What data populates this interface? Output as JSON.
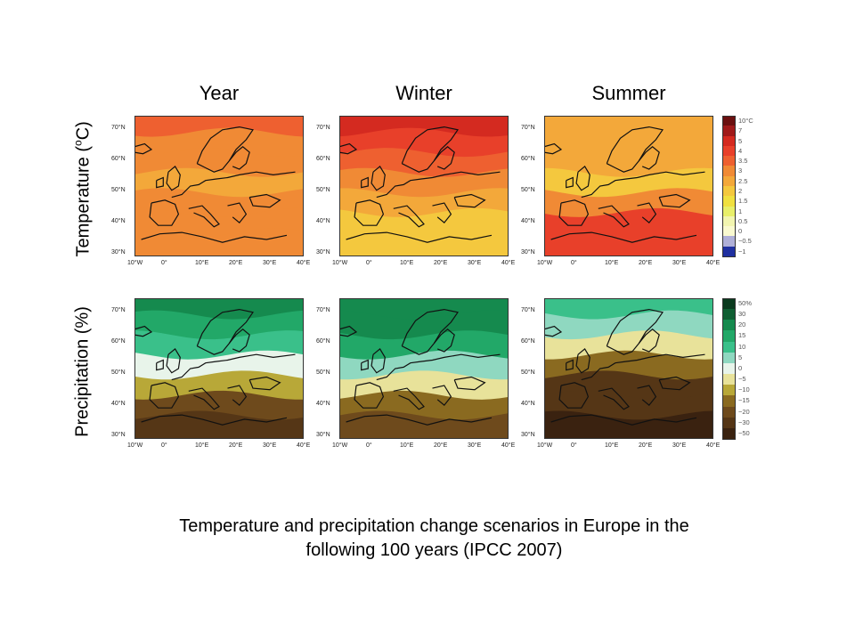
{
  "columns": [
    "Year",
    "Winter",
    "Summer"
  ],
  "rows": [
    {
      "label_main": "Temperature (",
      "label_sup": "o",
      "label_end": "C)"
    },
    {
      "label_main": "Precipitation (%)",
      "label_sup": "",
      "label_end": ""
    }
  ],
  "lat_ticks": [
    "70°N",
    "60°N",
    "50°N",
    "40°N",
    "30°N"
  ],
  "lon_ticks": [
    "10°W",
    "0°",
    "10°E",
    "20°E",
    "30°E",
    "40°E"
  ],
  "temperature_scale": {
    "labels": [
      "10°C",
      "7",
      "5",
      "4",
      "3.5",
      "3",
      "2.5",
      "2",
      "1.5",
      "1",
      "0.5",
      "0",
      "−0.5",
      "−1"
    ],
    "colors": [
      "#6b1010",
      "#a01a1a",
      "#d42a20",
      "#e8402a",
      "#ee6030",
      "#f08a35",
      "#f3a83a",
      "#f4c83e",
      "#f0e040",
      "#e8ef6a",
      "#f2f5b0",
      "#fafad0",
      "#b0b0d8",
      "#2030a0"
    ]
  },
  "precipitation_scale": {
    "labels": [
      "50%",
      "30",
      "20",
      "15",
      "10",
      "5",
      "0",
      "−5",
      "−10",
      "−15",
      "−20",
      "−30",
      "−50"
    ],
    "colors": [
      "#0a3a1e",
      "#0f5e32",
      "#158a4e",
      "#22a868",
      "#3ac08a",
      "#8fd8c0",
      "#e8f4ea",
      "#e8e29a",
      "#b8a838",
      "#8a6a20",
      "#6e4a1c",
      "#553616",
      "#3a2210"
    ]
  },
  "panels": [
    {
      "row": "temperature",
      "column": "Year",
      "bands": [
        3.5,
        3.3,
        3.1,
        2.8,
        3.0,
        3.0,
        3.2
      ]
    },
    {
      "row": "temperature",
      "column": "Winter",
      "bands": [
        6.5,
        4.6,
        3.9,
        3.2,
        2.7,
        2.4,
        2.1
      ]
    },
    {
      "row": "temperature",
      "column": "Summer",
      "bands": [
        2.6,
        2.8,
        2.6,
        2.2,
        3.3,
        4.4,
        4.2
      ]
    },
    {
      "row": "precipitation",
      "column": "Year",
      "bands": [
        22,
        18,
        14,
        4,
        -6,
        -17,
        -22
      ]
    },
    {
      "row": "precipitation",
      "column": "Winter",
      "bands": [
        28,
        20,
        16,
        6,
        -2,
        -12,
        -18
      ]
    },
    {
      "row": "precipitation",
      "column": "Summer",
      "bands": [
        14,
        8,
        -5,
        -14,
        -22,
        -30,
        -40
      ]
    }
  ],
  "caption_line1": "Temperature and precipitation change scenarios in Europe in the",
  "caption_line2": "following 100 years (IPCC 2007)"
}
